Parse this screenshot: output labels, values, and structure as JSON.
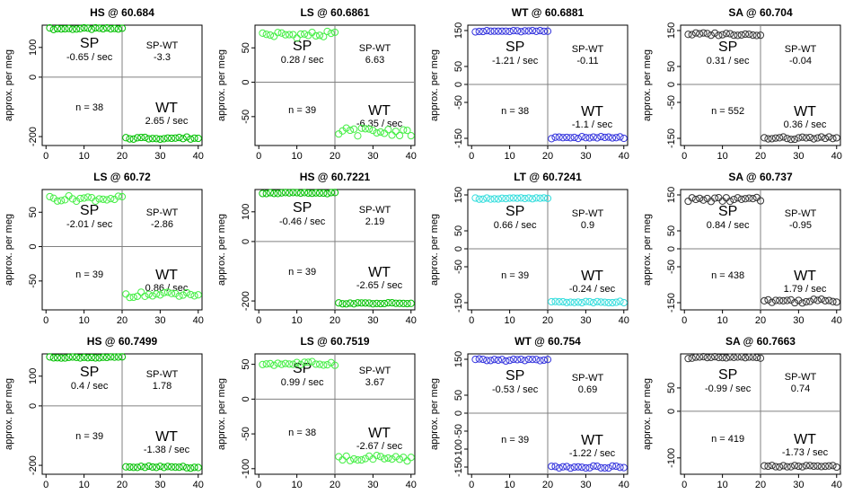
{
  "common": {
    "ylabel": "approx. per meg",
    "xticks": [
      0,
      10,
      20,
      30,
      40
    ],
    "xlim": [
      -1,
      41
    ],
    "sp_label": "SP",
    "wt_label": "WT",
    "spwt_label": "SP-WT"
  },
  "chart_data": [
    {
      "type": "scatter",
      "title": "HS @ 60.684",
      "color": "#00c000",
      "ylim": [
        -230,
        175
      ],
      "yticks": [
        -200,
        0,
        100
      ],
      "yticklabels": [
        "-200",
        "0",
        "100"
      ],
      "hline": 0,
      "sp_level": 163,
      "wt_level": -205,
      "sp_rate": "-0.65 / sec",
      "wt_rate": "2.65 / sec",
      "spwt": "-3.3",
      "n": "n = 38",
      "sp_jitter": 3,
      "wt_jitter": 4
    },
    {
      "type": "scatter",
      "title": "LS @ 60.6861",
      "color": "#44ee44",
      "ylim": [
        -92,
        83
      ],
      "yticks": [
        -50,
        0,
        50
      ],
      "yticklabels": [
        "-50",
        "0",
        "50"
      ],
      "hline": 0,
      "sp_level": 69,
      "wt_level": -72,
      "sp_rate": "0.28 / sec",
      "wt_rate": "-6.35 / sec",
      "spwt": "6.63",
      "n": "n = 39",
      "sp_jitter": 5,
      "wt_jitter": 6
    },
    {
      "type": "scatter",
      "title": "WT @ 60.6881",
      "color": "#3333dd",
      "ylim": [
        -170,
        165
      ],
      "yticks": [
        -150,
        -50,
        0,
        50,
        150
      ],
      "yticklabels": [
        "-150",
        "-50",
        "0",
        "50",
        "150"
      ],
      "hline": 0,
      "sp_level": 148,
      "wt_level": -148,
      "sp_rate": "-1.21 / sec",
      "wt_rate": "-1.1 / sec",
      "spwt": "-0.11",
      "n": "n = 38",
      "sp_jitter": 2,
      "wt_jitter": 3
    },
    {
      "type": "scatter",
      "title": "SA @ 60.704",
      "color": "#333333",
      "ylim": [
        -170,
        165
      ],
      "yticks": [
        -150,
        -50,
        0,
        50,
        150
      ],
      "yticklabels": [
        "-150",
        "-50",
        "0",
        "50",
        "150"
      ],
      "hline": 0,
      "sp_level": 140,
      "wt_level": -150,
      "sp_rate": "0.31 / sec",
      "wt_rate": "0.36 / sec",
      "spwt": "-0.04",
      "n": "n = 552",
      "sp_jitter": 4,
      "wt_jitter": 4
    },
    {
      "type": "scatter",
      "title": "LS @ 60.72",
      "color": "#44ee44",
      "ylim": [
        -92,
        83
      ],
      "yticks": [
        -50,
        0,
        50
      ],
      "yticklabels": [
        "-50",
        "0",
        "50"
      ],
      "hline": 0,
      "sp_level": 70,
      "wt_level": -70,
      "sp_rate": "-2.01 / sec",
      "wt_rate": "0.86 / sec",
      "spwt": "-2.86",
      "n": "n = 39",
      "sp_jitter": 4,
      "wt_jitter": 4
    },
    {
      "type": "scatter",
      "title": "HS @ 60.7221",
      "color": "#00c000",
      "ylim": [
        -230,
        175
      ],
      "yticks": [
        -200,
        0,
        100
      ],
      "yticklabels": [
        "-200",
        "0",
        "100"
      ],
      "hline": 0,
      "sp_level": 163,
      "wt_level": -208,
      "sp_rate": "-0.46 / sec",
      "wt_rate": "-2.65 / sec",
      "spwt": "2.19",
      "n": "n = 39",
      "sp_jitter": 2,
      "wt_jitter": 2
    },
    {
      "type": "scatter",
      "title": "LT @ 60.7241",
      "color": "#33dddd",
      "ylim": [
        -170,
        165
      ],
      "yticks": [
        -150,
        -50,
        0,
        50,
        150
      ],
      "yticklabels": [
        "-150",
        "-50",
        "0",
        "50",
        "150"
      ],
      "hline": 0,
      "sp_level": 140,
      "wt_level": -148,
      "sp_rate": "0.66 / sec",
      "wt_rate": "-0.24 / sec",
      "spwt": "0.9",
      "n": "n = 39",
      "sp_jitter": 2,
      "wt_jitter": 2
    },
    {
      "type": "scatter",
      "title": "SA @ 60.737",
      "color": "#333333",
      "ylim": [
        -170,
        165
      ],
      "yticks": [
        -150,
        -50,
        0,
        50,
        150
      ],
      "yticklabels": [
        "-150",
        "-50",
        "0",
        "50",
        "150"
      ],
      "hline": 0,
      "sp_level": 137,
      "wt_level": -145,
      "sp_rate": "0.84 / sec",
      "wt_rate": "1.79 / sec",
      "spwt": "-0.95",
      "n": "n = 438",
      "sp_jitter": 6,
      "wt_jitter": 6
    },
    {
      "type": "scatter",
      "title": "HS @ 60.7499",
      "color": "#00c000",
      "ylim": [
        -230,
        175
      ],
      "yticks": [
        -200,
        0,
        100
      ],
      "yticklabels": [
        "-200",
        "0",
        "100"
      ],
      "hline": 0,
      "sp_level": 163,
      "wt_level": -206,
      "sp_rate": "0.4 / sec",
      "wt_rate": "-1.38 / sec",
      "spwt": "1.78",
      "n": "n = 39",
      "sp_jitter": 2,
      "wt_jitter": 4
    },
    {
      "type": "scatter",
      "title": "LS @ 60.7519",
      "color": "#44ee44",
      "ylim": [
        -108,
        65
      ],
      "yticks": [
        -100,
        -50,
        0,
        50
      ],
      "yticklabels": [
        "-100",
        "-50",
        "0",
        "50"
      ],
      "hline": 0,
      "sp_level": 51,
      "wt_level": -85,
      "sp_rate": "0.99 / sec",
      "wt_rate": "-2.67 / sec",
      "spwt": "3.67",
      "n": "n = 38",
      "sp_jitter": 3,
      "wt_jitter": 5
    },
    {
      "type": "scatter",
      "title": "WT @ 60.754",
      "color": "#3333dd",
      "ylim": [
        -170,
        165
      ],
      "yticks": [
        -150,
        -100,
        -50,
        0,
        50,
        150
      ],
      "yticklabels": [
        "-150",
        "-100",
        "-50",
        "0",
        "50",
        "150"
      ],
      "hline": 0,
      "sp_level": 148,
      "wt_level": -150,
      "sp_rate": "-0.53 / sec",
      "wt_rate": "-1.22 / sec",
      "spwt": "0.69",
      "n": "n = 39",
      "sp_jitter": 3,
      "wt_jitter": 3
    },
    {
      "type": "scatter",
      "title": "SA @ 60.7663",
      "color": "#333333",
      "ylim": [
        -135,
        123
      ],
      "yticks": [
        -100,
        0,
        50
      ],
      "yticklabels": [
        "-100",
        "0",
        "50"
      ],
      "hline": 0,
      "sp_level": 115,
      "wt_level": -118,
      "sp_rate": "-0.99 / sec",
      "wt_rate": "-1.73 / sec",
      "spwt": "0.74",
      "n": "n = 419",
      "sp_jitter": 2,
      "wt_jitter": 2
    }
  ]
}
